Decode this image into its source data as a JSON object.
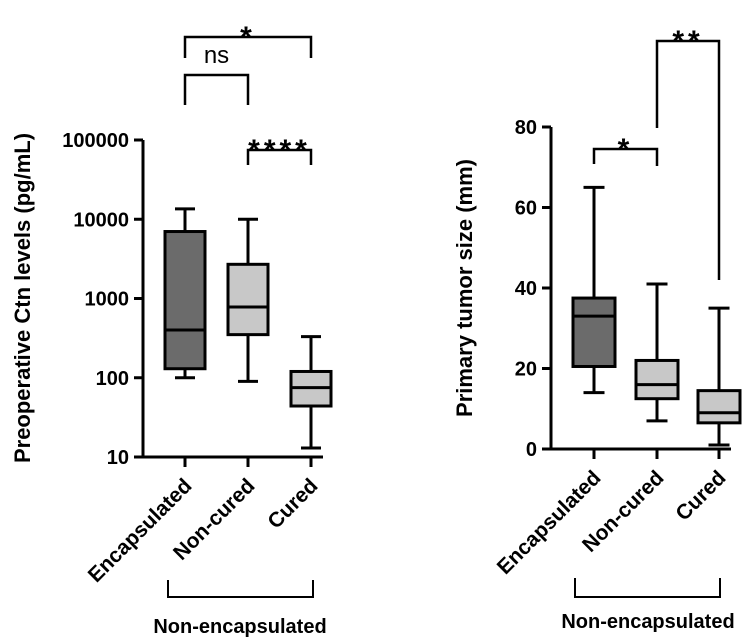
{
  "chart_data": [
    {
      "type": "box",
      "ylabel": "Preoperative Ctn levels (pg/mL)",
      "yscale": "log",
      "ylim": [
        10,
        100000
      ],
      "yticks": [
        "10",
        "100",
        "1000",
        "10000",
        "100000"
      ],
      "categories": [
        "Encapsulated",
        "Non-cured",
        "Cured"
      ],
      "group_label": "Non-encapsulated",
      "boxes": [
        {
          "category": "Encapsulated",
          "min": 100,
          "q1": 130,
          "median": 400,
          "q3": 7000,
          "max": 13500,
          "color": "#6b6b6b"
        },
        {
          "category": "Non-cured",
          "min": 90,
          "q1": 350,
          "median": 780,
          "q3": 2700,
          "max": 10000,
          "color": "#c8c8c8"
        },
        {
          "category": "Cured",
          "min": 13,
          "q1": 44,
          "median": 75,
          "q3": 120,
          "max": 330,
          "color": "#c8c8c8"
        }
      ],
      "comparisons": [
        {
          "a": "Encapsulated",
          "b": "Non-cured",
          "label": "ns"
        },
        {
          "a": "Non-cured",
          "b": "Cured",
          "label": "****"
        },
        {
          "a": "Encapsulated",
          "b": "Cured",
          "label": "*"
        }
      ]
    },
    {
      "type": "box",
      "ylabel": "Primary tumor size (mm)",
      "yscale": "linear",
      "ylim": [
        0,
        80
      ],
      "yticks": [
        "0",
        "20",
        "40",
        "60",
        "80"
      ],
      "categories": [
        "Encapsulated",
        "Non-cured",
        "Cured"
      ],
      "group_label": "Non-encapsulated",
      "boxes": [
        {
          "category": "Encapsulated",
          "min": 14,
          "q1": 20.5,
          "median": 33,
          "q3": 37.5,
          "max": 65,
          "color": "#6b6b6b"
        },
        {
          "category": "Non-cured",
          "min": 7,
          "q1": 12.5,
          "median": 16,
          "q3": 22,
          "max": 41,
          "color": "#c8c8c8"
        },
        {
          "category": "Cured",
          "min": 1,
          "q1": 6.5,
          "median": 9,
          "q3": 14.5,
          "max": 35,
          "color": "#c8c8c8"
        }
      ],
      "comparisons": [
        {
          "a": "Encapsulated",
          "b": "Non-cured",
          "label": "*"
        },
        {
          "a": "Non-cured",
          "b": "Cured",
          "label": "**"
        }
      ]
    }
  ]
}
